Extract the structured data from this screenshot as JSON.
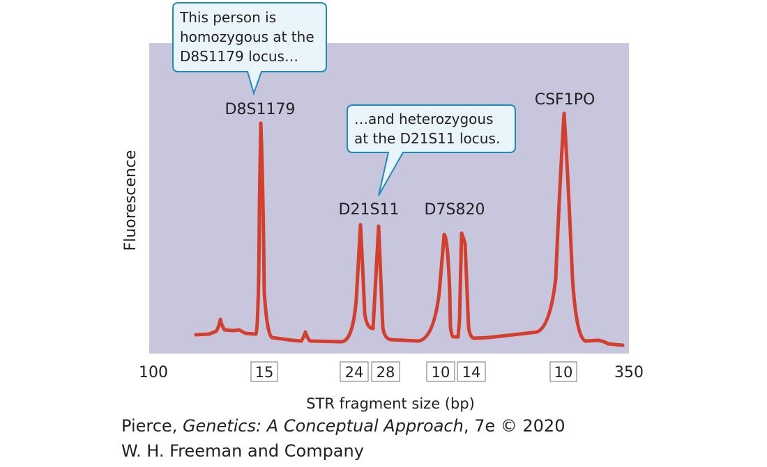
{
  "chart_data": {
    "type": "line",
    "xlabel": "STR fragment size (bp)",
    "ylabel": "Fluorescence",
    "xlim": [
      100,
      350
    ],
    "x_ticks": [
      "100",
      "350"
    ],
    "peaks": [
      {
        "locus": "D8S1179",
        "alleles": [
          "15"
        ]
      },
      {
        "locus": "D21S11",
        "alleles": [
          "24",
          "28"
        ]
      },
      {
        "locus": "D7S820",
        "alleles": [
          "10",
          "14"
        ]
      },
      {
        "locus": "CSF1PO",
        "alleles": [
          "10"
        ]
      }
    ],
    "annotations": [
      {
        "lines": [
          "This person is",
          "homozygous at the",
          "D8S1179 locus…"
        ]
      },
      {
        "lines": [
          "…and heterozygous",
          "at the D21S11 locus."
        ]
      }
    ],
    "colors": {
      "background": "#c7c6dd",
      "trace": "#d23f2f",
      "callout_fill": "#eaf5fb",
      "callout_stroke": "#1f8ab8"
    }
  },
  "credit": {
    "author": "Pierce, ",
    "book_title": "Genetics: A Conceptual Approach",
    "edition_year": ", 7e © 2020",
    "publisher": "W. H. Freeman and Company"
  }
}
